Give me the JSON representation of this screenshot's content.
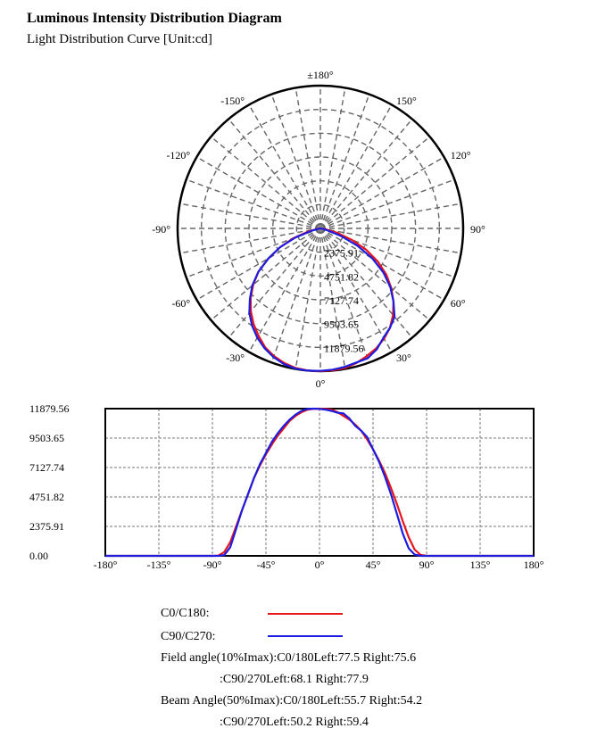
{
  "header": {
    "title": "Luminous Intensity Distribution Diagram",
    "subtitle": "Light Distribution Curve [Unit:cd]"
  },
  "chart_data": [
    {
      "type": "polar",
      "angle_labels": [
        {
          "deg": 180,
          "text": "±180°"
        },
        {
          "deg": 150,
          "text": "150°"
        },
        {
          "deg": -150,
          "text": "-150°"
        },
        {
          "deg": 120,
          "text": "120°"
        },
        {
          "deg": -120,
          "text": "-120°"
        },
        {
          "deg": 90,
          "text": "90°"
        },
        {
          "deg": -90,
          "text": "-90°"
        },
        {
          "deg": 60,
          "text": "60°"
        },
        {
          "deg": -60,
          "text": "-60°"
        },
        {
          "deg": 30,
          "text": "30°"
        },
        {
          "deg": -30,
          "text": "-30°"
        },
        {
          "deg": 0,
          "text": "0°"
        }
      ],
      "radial_labels": [
        "2375.91",
        "4751.82",
        "7127.74",
        "9503.65",
        "11879.56"
      ],
      "rmax": 11879.56,
      "grid": true,
      "series": [
        {
          "name": "C0/C180",
          "color": "#e8141b",
          "angles": [
            -90,
            -85,
            -80,
            -75,
            -70,
            -65,
            -60,
            -55,
            -50,
            -45,
            -40,
            -35,
            -30,
            -25,
            -20,
            -15,
            -10,
            -5,
            0,
            5,
            10,
            15,
            20,
            25,
            30,
            35,
            40,
            45,
            50,
            55,
            60,
            65,
            70,
            75,
            80,
            85,
            90
          ],
          "values": [
            0,
            20,
            300,
            1100,
            2400,
            3700,
            5000,
            6300,
            7300,
            8200,
            9000,
            9700,
            10300,
            10900,
            11300,
            11600,
            11800,
            11870,
            11880,
            11850,
            11800,
            11600,
            11300,
            11000,
            10600,
            10100,
            9400,
            8600,
            7700,
            6700,
            5500,
            4200,
            2800,
            1500,
            500,
            80,
            0
          ]
        },
        {
          "name": "C90/C270",
          "color": "#1c1ce0",
          "angles": [
            -90,
            -85,
            -80,
            -75,
            -70,
            -65,
            -60,
            -55,
            -50,
            -45,
            -40,
            -35,
            -30,
            -25,
            -20,
            -15,
            -10,
            -5,
            0,
            5,
            10,
            15,
            20,
            25,
            30,
            35,
            40,
            45,
            50,
            55,
            60,
            65,
            70,
            75,
            80,
            85,
            90
          ],
          "values": [
            0,
            0,
            60,
            700,
            2200,
            3700,
            5000,
            6300,
            7400,
            8300,
            9200,
            9900,
            10500,
            11000,
            11400,
            11700,
            11850,
            11880,
            11860,
            11800,
            11700,
            11550,
            11500,
            11100,
            10500,
            10100,
            9600,
            8600,
            7600,
            6400,
            5000,
            3400,
            1800,
            600,
            100,
            0,
            0
          ]
        }
      ]
    },
    {
      "type": "line",
      "x_ticks": [
        "-180°",
        "-135°",
        "-90°",
        "-45°",
        "0°",
        "45°",
        "90°",
        "135°",
        "180°"
      ],
      "y_ticks": [
        "0.00",
        "2375.91",
        "4751.82",
        "7127.74",
        "9503.65",
        "11879.56"
      ],
      "xlim": [
        -180,
        180
      ],
      "ylim": [
        0,
        11879.56
      ],
      "grid": true,
      "series_ref": "same as polar series (C0/C180, C90/C270)"
    }
  ],
  "legend": {
    "items": [
      {
        "label": "C0/C180:",
        "color": "#e8141b"
      },
      {
        "label": "C90/C270:",
        "color": "#1c1ce0"
      }
    ]
  },
  "stats": {
    "field_line1": "Field angle(10%Imax):C0/180Left:77.5 Right:75.6",
    "field_line2": ":C90/270Left:68.1 Right:77.9",
    "beam_line1": "Beam Angle(50%Imax):C0/180Left:55.7 Right:54.2",
    "beam_line2": ":C90/270Left:50.2 Right:59.4"
  }
}
